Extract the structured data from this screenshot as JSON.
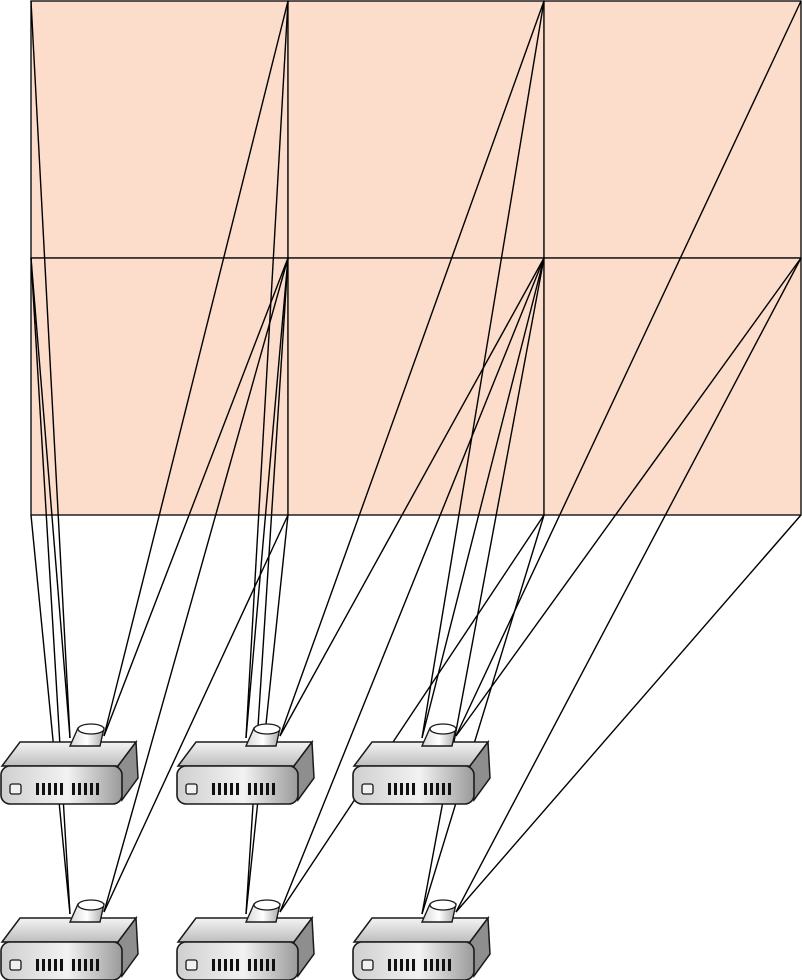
{
  "diagram": {
    "screen_grid": {
      "rows": 2,
      "cols": 3,
      "fill": "#fcdcca",
      "stroke": "#000000"
    },
    "projector_grid": {
      "rows": 2,
      "cols": 3
    },
    "projector_style": {
      "body_light": "#eaeaea",
      "body_dark": "#8e8e8e",
      "front_face": "#d0d0d0",
      "outline": "#1a1a1a",
      "vent_color": "#111111"
    },
    "beam_stroke": "#000000"
  }
}
